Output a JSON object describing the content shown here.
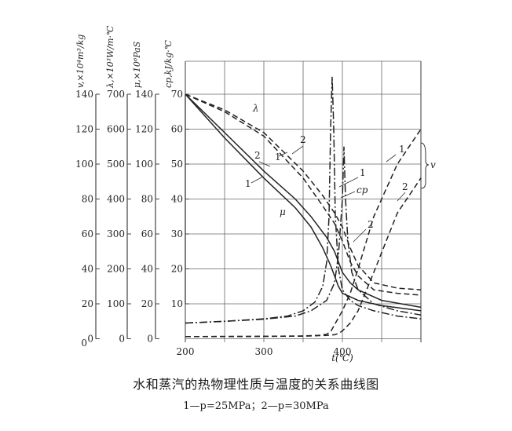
{
  "chart_data": {
    "type": "line",
    "title": "水和蒸汽的热物理性质与温度的关系曲线图",
    "subtitle": "1—p=25MPa；2—p=30MPa",
    "xlabel": "t(℃)",
    "xlim": [
      200,
      500
    ],
    "x_ticks": [
      "200",
      "300",
      "400"
    ],
    "grid": true,
    "axes": [
      {
        "key": "v",
        "label": "v,×10⁴m³/kg",
        "ticks": [
          "0",
          "20",
          "40",
          "60",
          "80",
          "100",
          "120",
          "140"
        ]
      },
      {
        "key": "lambda",
        "label": "λ,×10³W/m·℃",
        "ticks": [
          "0",
          "100",
          "200",
          "300",
          "400",
          "500",
          "600",
          "700"
        ]
      },
      {
        "key": "mu",
        "label": "μ,×10⁶PaS",
        "ticks": [
          "0",
          "20",
          "40",
          "60",
          "80",
          "100",
          "120",
          "140"
        ]
      },
      {
        "key": "cp",
        "label": "cp,kJ/kg·℃",
        "ticks": [
          "10",
          "20",
          "30",
          "40",
          "50",
          "60",
          "70"
        ]
      }
    ],
    "plot_ylim_cp": [
      0,
      75
    ],
    "curve_labels": {
      "lambda": "λ",
      "mu": "μ",
      "cp": "cp",
      "v": "v",
      "p1": "1",
      "p2": "2"
    },
    "series": [
      {
        "name": "λ",
        "pressure": "1",
        "axis": "lambda",
        "x": [
          200,
          250,
          300,
          350,
          375,
          390,
          400,
          410,
          420,
          440,
          470,
          500
        ],
        "y": [
          700,
          650,
          580,
          460,
          380,
          330,
          280,
          220,
          180,
          140,
          130,
          125
        ]
      },
      {
        "name": "λ",
        "pressure": "2",
        "axis": "lambda",
        "x": [
          200,
          250,
          300,
          350,
          375,
          390,
          400,
          410,
          420,
          440,
          470,
          500
        ],
        "y": [
          700,
          655,
          590,
          480,
          410,
          360,
          320,
          260,
          210,
          160,
          145,
          140
        ]
      },
      {
        "name": "μ",
        "pressure": "1",
        "axis": "mu",
        "x": [
          200,
          250,
          300,
          340,
          360,
          375,
          385,
          390,
          395,
          400,
          420,
          450,
          500
        ],
        "y": [
          140,
          115,
          92,
          75,
          64,
          52,
          42,
          36,
          30,
          26,
          22,
          19,
          16
        ]
      },
      {
        "name": "μ",
        "pressure": "2",
        "axis": "mu",
        "x": [
          200,
          250,
          300,
          340,
          360,
          380,
          390,
          395,
          400,
          410,
          420,
          450,
          500
        ],
        "y": [
          140,
          118,
          96,
          80,
          70,
          58,
          50,
          44,
          38,
          32,
          28,
          22,
          18
        ]
      },
      {
        "name": "cp",
        "pressure": "1",
        "axis": "cp",
        "x": [
          200,
          250,
          300,
          330,
          350,
          365,
          375,
          380,
          383,
          385,
          387,
          389,
          391,
          395,
          400,
          410,
          420,
          440,
          470,
          500
        ],
        "y": [
          4.5,
          5.0,
          5.7,
          6.5,
          8.0,
          10.5,
          15,
          22,
          35,
          60,
          75,
          60,
          35,
          20,
          14,
          11,
          9.5,
          8,
          6.5,
          5.7
        ]
      },
      {
        "name": "cp",
        "pressure": "2",
        "axis": "cp",
        "x": [
          200,
          250,
          300,
          340,
          360,
          380,
          390,
          395,
          400,
          402,
          404,
          407,
          412,
          420,
          440,
          470,
          500
        ],
        "y": [
          4.5,
          5.0,
          5.6,
          6.5,
          8.0,
          11,
          16,
          24,
          40,
          55,
          40,
          28,
          19,
          14,
          10,
          8,
          6.8
        ]
      },
      {
        "name": "v",
        "pressure": "1",
        "axis": "v",
        "x": [
          200,
          300,
          350,
          370,
          380,
          385,
          390,
          400,
          410,
          420,
          440,
          470,
          500
        ],
        "y": [
          1.2,
          1.4,
          1.6,
          2,
          2.6,
          4,
          8,
          16,
          26,
          40,
          70,
          100,
          120
        ]
      },
      {
        "name": "v",
        "pressure": "2",
        "axis": "v",
        "x": [
          200,
          300,
          350,
          380,
          390,
          395,
          400,
          410,
          420,
          440,
          470,
          500
        ],
        "y": [
          1.2,
          1.35,
          1.5,
          1.9,
          2.3,
          3,
          4.5,
          9,
          16,
          38,
          72,
          92
        ]
      }
    ]
  }
}
